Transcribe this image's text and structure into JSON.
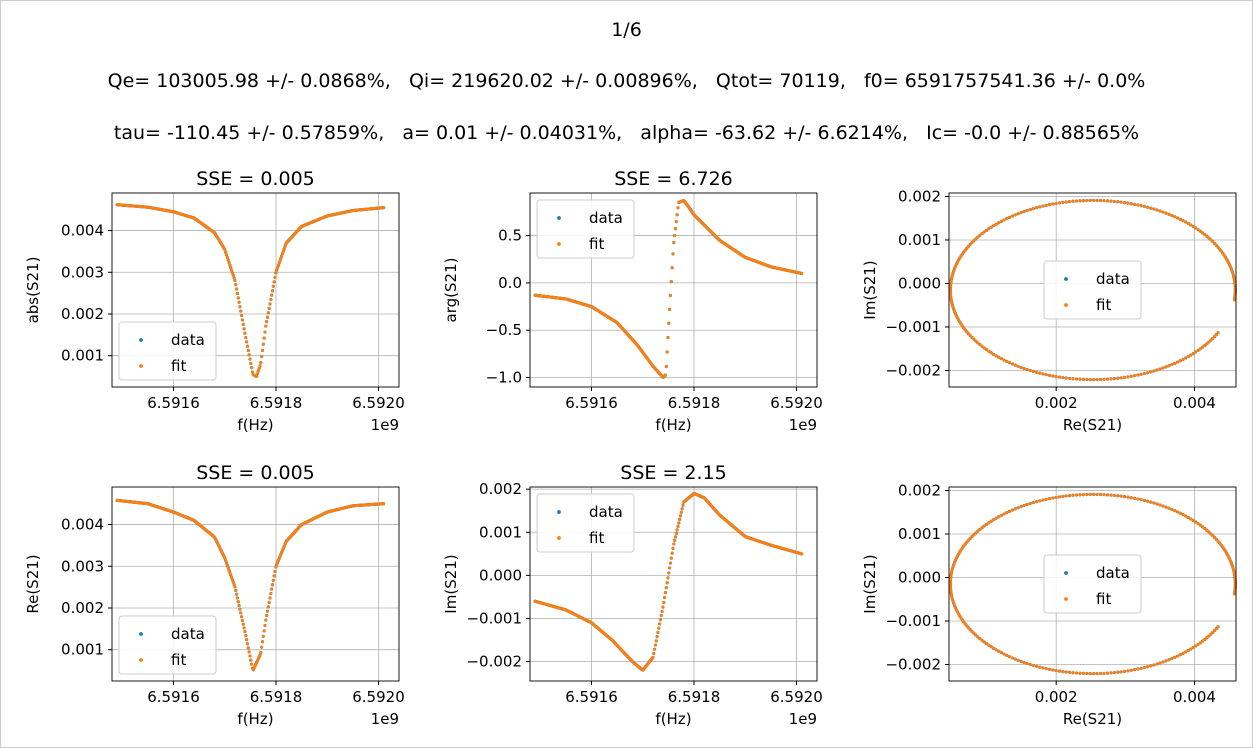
{
  "header": {
    "page": "1/6",
    "line1": "Qe= 103005.98 +/- 0.0868%,   Qi= 219620.02 +/- 0.00896%,   Qtot= 70119,   f0= 6591757541.36 +/- 0.0%",
    "line2": "tau= -110.45 +/- 0.57859%,   a= 0.01 +/- 0.04031%,   alpha= -63.62 +/- 6.6214%,   Ic= -0.0 +/- 0.88565%"
  },
  "colors": {
    "data": "#1f77b4",
    "fit": "#ff7f0e",
    "grid": "#b0b0b0"
  },
  "chart_data": [
    {
      "type": "scatter",
      "title": "SSE = 0.005",
      "xlabel": "f(Hz)",
      "ylabel": "abs(S21)",
      "x_offset_label": "1e9",
      "xlim": [
        6.59148,
        6.59204
      ],
      "ylim": [
        0.00025,
        0.0049
      ],
      "xticks": [
        6.5916,
        6.5918,
        6.592
      ],
      "xtick_labels": [
        "6.5916",
        "6.5918",
        "6.5920"
      ],
      "yticks": [
        0.001,
        0.002,
        0.003,
        0.004
      ],
      "ytick_labels": [
        "0.001",
        "0.002",
        "0.003",
        "0.004"
      ],
      "grid": true,
      "legend": "lower left",
      "series": [
        {
          "name": "data"
        },
        {
          "name": "fit"
        }
      ],
      "x": [
        6.59149,
        6.59155,
        6.5916,
        6.59164,
        6.59168,
        6.5917,
        6.59172,
        6.59174,
        6.591755,
        6.591762,
        6.59177,
        6.59178,
        6.5918,
        6.59182,
        6.59185,
        6.5919,
        6.59195,
        6.59201
      ],
      "y": [
        0.00462,
        0.00456,
        0.00445,
        0.0043,
        0.00395,
        0.00355,
        0.0028,
        0.0015,
        0.00055,
        0.0005,
        0.0008,
        0.0017,
        0.003,
        0.0037,
        0.0041,
        0.00435,
        0.00448,
        0.00455
      ]
    },
    {
      "type": "scatter",
      "title": "SSE = 6.726",
      "xlabel": "f(Hz)",
      "ylabel": "arg(S21)",
      "x_offset_label": "1e9",
      "xlim": [
        6.59148,
        6.59204
      ],
      "ylim": [
        -1.1,
        0.95
      ],
      "xticks": [
        6.5916,
        6.5918,
        6.592
      ],
      "xtick_labels": [
        "6.5916",
        "6.5918",
        "6.5920"
      ],
      "yticks": [
        -1.0,
        -0.5,
        0.0,
        0.5
      ],
      "ytick_labels": [
        "−1.0",
        "−0.5",
        "0.0",
        "0.5"
      ],
      "grid": true,
      "legend": "upper left",
      "series": [
        {
          "name": "data"
        },
        {
          "name": "fit"
        }
      ],
      "x": [
        6.59149,
        6.59155,
        6.5916,
        6.59165,
        6.59169,
        6.59172,
        6.59174,
        6.591745,
        6.59175,
        6.59176,
        6.59177,
        6.59178,
        6.59179,
        6.5918,
        6.59185,
        6.5919,
        6.59195,
        6.59201
      ],
      "y": [
        -0.13,
        -0.17,
        -0.25,
        -0.42,
        -0.66,
        -0.88,
        -1.0,
        -0.97,
        -0.5,
        0.4,
        0.85,
        0.87,
        0.8,
        0.72,
        0.45,
        0.27,
        0.17,
        0.1
      ]
    },
    {
      "type": "scatter",
      "title": "",
      "xlabel": "Re(S21)",
      "ylabel": "Im(S21)",
      "xlim": [
        0.00045,
        0.0046
      ],
      "ylim": [
        -0.00238,
        0.00208
      ],
      "xticks": [
        0.002,
        0.004
      ],
      "xtick_labels": [
        "0.002",
        "0.004"
      ],
      "yticks": [
        -0.002,
        -0.001,
        0.0,
        0.001,
        0.002
      ],
      "ytick_labels": [
        "−0.002",
        "−0.001",
        "0.000",
        "0.001",
        "0.002"
      ],
      "grid": true,
      "legend": "center",
      "series": [
        {
          "name": "data"
        },
        {
          "name": "fit"
        }
      ],
      "circle": {
        "center": [
          0.00253,
          -0.00015
        ],
        "radius": 0.00206,
        "theta_gap": [
          -0.48,
          -0.12
        ]
      }
    },
    {
      "type": "scatter",
      "title": "SSE = 0.005",
      "xlabel": "f(Hz)",
      "ylabel": "Re(S21)",
      "x_offset_label": "1e9",
      "xlim": [
        6.59148,
        6.59204
      ],
      "ylim": [
        0.00025,
        0.0049
      ],
      "xticks": [
        6.5916,
        6.5918,
        6.592
      ],
      "xtick_labels": [
        "6.5916",
        "6.5918",
        "6.5920"
      ],
      "yticks": [
        0.001,
        0.002,
        0.003,
        0.004
      ],
      "ytick_labels": [
        "0.001",
        "0.002",
        "0.003",
        "0.004"
      ],
      "grid": true,
      "legend": "lower left",
      "series": [
        {
          "name": "data"
        },
        {
          "name": "fit"
        }
      ],
      "x": [
        6.59149,
        6.59155,
        6.5916,
        6.59164,
        6.59168,
        6.5917,
        6.59172,
        6.59174,
        6.591755,
        6.59177,
        6.59178,
        6.5918,
        6.59182,
        6.59185,
        6.5919,
        6.59195,
        6.59201
      ],
      "y": [
        0.00458,
        0.0045,
        0.0043,
        0.0041,
        0.0037,
        0.0032,
        0.0025,
        0.0014,
        0.0005,
        0.0009,
        0.0017,
        0.003,
        0.0036,
        0.004,
        0.0043,
        0.00445,
        0.0045
      ]
    },
    {
      "type": "scatter",
      "title": "SSE = 2.15",
      "xlabel": "f(Hz)",
      "ylabel": "Im(S21)",
      "x_offset_label": "1e9",
      "xlim": [
        6.59148,
        6.59204
      ],
      "ylim": [
        -0.00245,
        0.00205
      ],
      "xticks": [
        6.5916,
        6.5918,
        6.592
      ],
      "xtick_labels": [
        "6.5916",
        "6.5918",
        "6.5920"
      ],
      "yticks": [
        -0.002,
        -0.001,
        0.0,
        0.001,
        0.002
      ],
      "ytick_labels": [
        "−0.002",
        "−0.001",
        "0.000",
        "0.001",
        "0.002"
      ],
      "grid": true,
      "legend": "upper left",
      "series": [
        {
          "name": "data"
        },
        {
          "name": "fit"
        }
      ],
      "x": [
        6.59149,
        6.59155,
        6.5916,
        6.59164,
        6.59168,
        6.5917,
        6.59172,
        6.59174,
        6.59176,
        6.59178,
        6.5918,
        6.59182,
        6.59185,
        6.5919,
        6.59195,
        6.59201
      ],
      "y": [
        -0.0006,
        -0.0008,
        -0.0011,
        -0.0015,
        -0.002,
        -0.0022,
        -0.0019,
        -0.0007,
        0.0007,
        0.0017,
        0.0019,
        0.0018,
        0.0014,
        0.0009,
        0.0007,
        0.0005
      ]
    },
    {
      "type": "scatter",
      "title": "",
      "xlabel": "Re(S21)",
      "ylabel": "Im(S21)",
      "xlim": [
        0.00045,
        0.0046
      ],
      "ylim": [
        -0.00238,
        0.00208
      ],
      "xticks": [
        0.002,
        0.004
      ],
      "xtick_labels": [
        "0.002",
        "0.004"
      ],
      "yticks": [
        -0.002,
        -0.001,
        0.0,
        0.001,
        0.002
      ],
      "ytick_labels": [
        "−0.002",
        "−0.001",
        "0.000",
        "0.001",
        "0.002"
      ],
      "grid": true,
      "legend": "center",
      "series": [
        {
          "name": "data"
        },
        {
          "name": "fit"
        }
      ],
      "circle": {
        "center": [
          0.00253,
          -0.00015
        ],
        "radius": 0.00206,
        "theta_gap": [
          -0.48,
          -0.12
        ]
      }
    }
  ]
}
